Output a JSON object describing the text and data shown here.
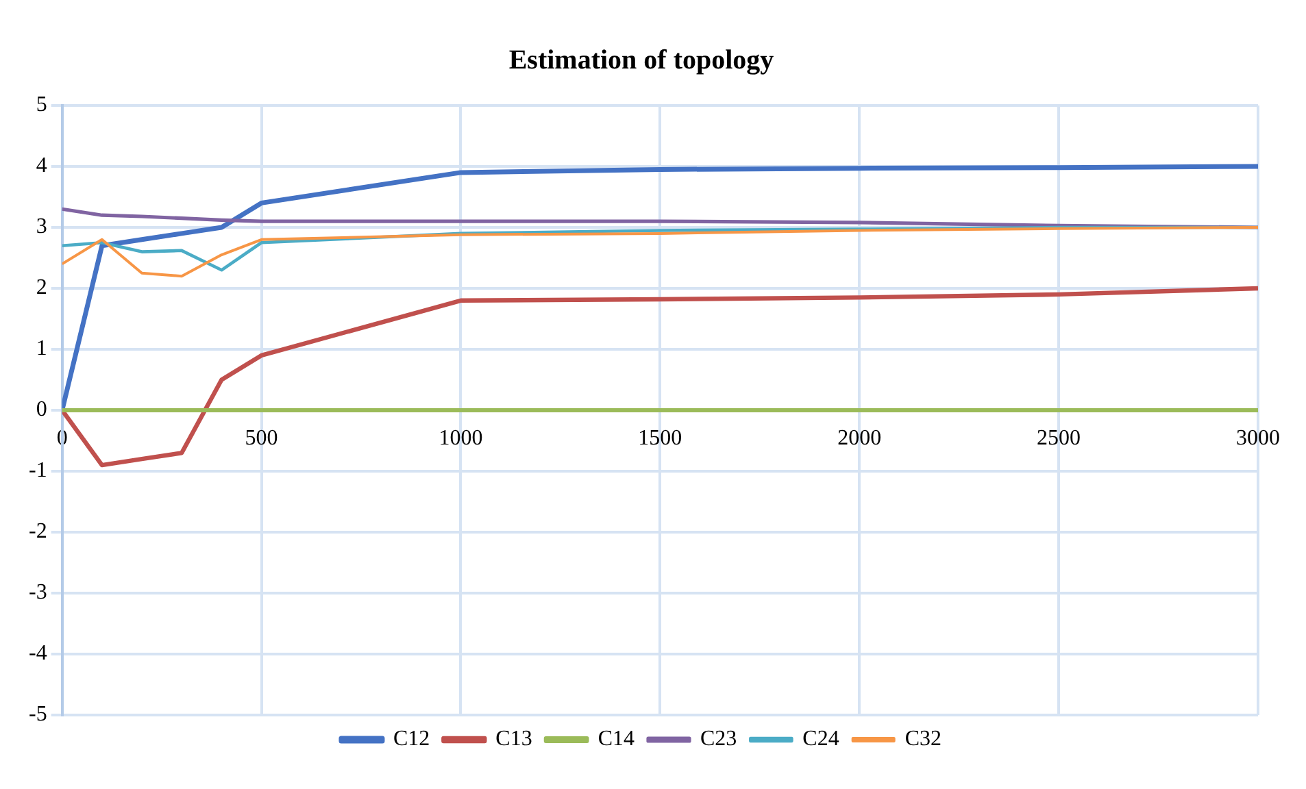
{
  "chart_data": {
    "type": "line",
    "title": "Estimation of topology",
    "x": [
      0,
      100,
      200,
      300,
      400,
      500,
      1000,
      1500,
      2000,
      2500,
      3000
    ],
    "series": [
      {
        "name": "C12",
        "color": "#4472c4",
        "values": [
          0,
          2.7,
          2.8,
          2.9,
          3.0,
          3.4,
          3.9,
          3.95,
          3.97,
          3.98,
          4.0
        ]
      },
      {
        "name": "C13",
        "color": "#c0504d",
        "values": [
          0,
          -0.9,
          -0.8,
          -0.7,
          0.5,
          0.9,
          1.8,
          1.82,
          1.85,
          1.9,
          2.0
        ]
      },
      {
        "name": "C14",
        "color": "#9bbb59",
        "values": [
          0,
          0,
          0,
          0,
          0,
          0,
          0,
          0,
          0,
          0,
          0
        ]
      },
      {
        "name": "C23",
        "color": "#8064a2",
        "values": [
          3.3,
          3.2,
          3.18,
          3.15,
          3.12,
          3.1,
          3.1,
          3.1,
          3.08,
          3.03,
          3.0
        ]
      },
      {
        "name": "C24",
        "color": "#4bacc6",
        "values": [
          2.7,
          2.75,
          2.6,
          2.62,
          2.3,
          2.75,
          2.9,
          2.95,
          2.97,
          3.0,
          3.0
        ]
      },
      {
        "name": "C32",
        "color": "#f79646",
        "values": [
          2.4,
          2.8,
          2.25,
          2.2,
          2.55,
          2.8,
          2.88,
          2.9,
          2.95,
          2.98,
          3.0
        ]
      }
    ],
    "xlim": [
      0,
      3000
    ],
    "xticks": [
      0,
      500,
      1000,
      1500,
      2000,
      2500,
      3000
    ],
    "ylim": [
      -5,
      5
    ],
    "yticks": [
      -5,
      -4,
      -3,
      -2,
      -1,
      0,
      1,
      2,
      3,
      4,
      5
    ],
    "grid": true,
    "legend": "bottom",
    "marker": "none",
    "line_style": "solid"
  }
}
